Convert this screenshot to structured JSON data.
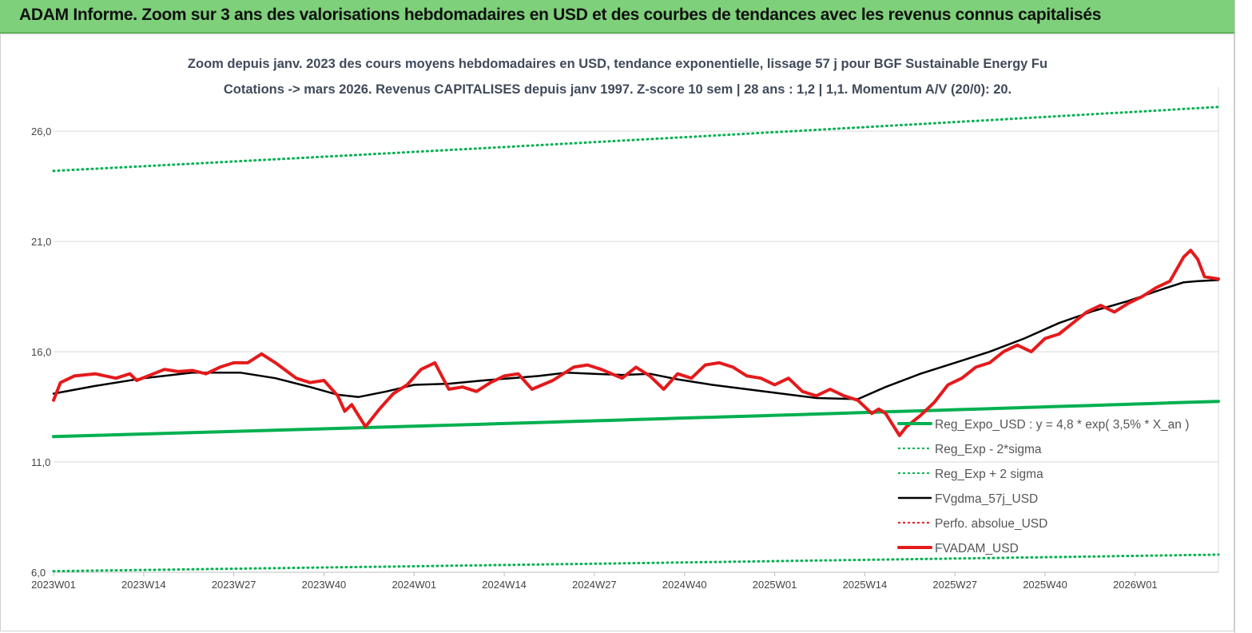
{
  "header": {
    "banner_title": "ADAM Informe. Zoom sur 3 ans des valorisations hebdomadaires en USD et des courbes de tendances avec les revenus connus capitalisés"
  },
  "colors": {
    "banner": "#7ed07a",
    "trend_green": "#00b050",
    "price_red": "#e41a1c",
    "smooth_black": "#000000",
    "grid": "#d9d9d9"
  },
  "chart_data": {
    "type": "line",
    "title_line1": "Zoom depuis janv. 2023 des cours moyens hebdomadaires en USD, tendance exponentielle, lissage 57 j pour BGF Sustainable Energy Fu",
    "title_line2": "Cotations -> mars 2026. Revenus CAPITALISES depuis janv 1997. Z-score 10 sem | 28 ans : 1,2 | 1,1. Momentum A/V (20/0): 20.",
    "x_ticks": [
      "2023W01",
      "2023W14",
      "2023W27",
      "2023W40",
      "2024W01",
      "2024W14",
      "2024W27",
      "2024W40",
      "2025W01",
      "2025W14",
      "2025W27",
      "2025W40",
      "2026W01"
    ],
    "y_ticks": [
      "6,0",
      "11,0",
      "16,0",
      "21,0",
      "26,0"
    ],
    "ylim": [
      6,
      28
    ],
    "x_range_weeks": [
      0,
      168
    ],
    "grid": "horizontal",
    "legend_position": "bottom-right",
    "series": [
      {
        "name": "Reg_Expo_USD : y = 4,8 * exp( 3,5% * X_an )",
        "style": "solid-thick",
        "color": "#00b050",
        "points": [
          [
            0,
            12.15
          ],
          [
            168,
            13.75
          ]
        ]
      },
      {
        "name": "Reg_Exp - 2*sigma",
        "style": "dotted",
        "color": "#00b050",
        "points": [
          [
            0,
            6.05
          ],
          [
            168,
            6.8
          ]
        ]
      },
      {
        "name": "Reg_Exp + 2 sigma",
        "style": "dotted",
        "color": "#00b050",
        "points": [
          [
            0,
            24.2
          ],
          [
            168,
            27.1
          ]
        ]
      },
      {
        "name": "FVgdma_57j_USD",
        "style": "solid",
        "color": "#000000",
        "points": [
          [
            0,
            14.1
          ],
          [
            6,
            14.45
          ],
          [
            13,
            14.8
          ],
          [
            20,
            15.05
          ],
          [
            27,
            15.05
          ],
          [
            32,
            14.8
          ],
          [
            37,
            14.4
          ],
          [
            41,
            14.05
          ],
          [
            44,
            13.95
          ],
          [
            48,
            14.2
          ],
          [
            52,
            14.5
          ],
          [
            57,
            14.55
          ],
          [
            62,
            14.7
          ],
          [
            66,
            14.8
          ],
          [
            70,
            14.9
          ],
          [
            74,
            15.05
          ],
          [
            78,
            15.0
          ],
          [
            82,
            14.95
          ],
          [
            86,
            15.0
          ],
          [
            90,
            14.75
          ],
          [
            95,
            14.5
          ],
          [
            100,
            14.3
          ],
          [
            105,
            14.1
          ],
          [
            110,
            13.9
          ],
          [
            116,
            13.85
          ],
          [
            120,
            14.4
          ],
          [
            125,
            15.0
          ],
          [
            130,
            15.5
          ],
          [
            135,
            16.0
          ],
          [
            140,
            16.6
          ],
          [
            145,
            17.3
          ],
          [
            150,
            17.85
          ],
          [
            155,
            18.3
          ],
          [
            160,
            18.85
          ],
          [
            163,
            19.15
          ],
          [
            165,
            19.2
          ],
          [
            168,
            19.25
          ]
        ]
      },
      {
        "name": "Perfo. absolue_USD",
        "style": "dotted",
        "color": "#e41a1c",
        "points": []
      },
      {
        "name": "FVADAM_USD",
        "style": "solid-thick",
        "color": "#e41a1c",
        "points": [
          [
            0,
            13.8
          ],
          [
            1,
            14.6
          ],
          [
            3,
            14.9
          ],
          [
            6,
            15.0
          ],
          [
            9,
            14.8
          ],
          [
            11,
            15.0
          ],
          [
            12,
            14.7
          ],
          [
            16,
            15.2
          ],
          [
            18,
            15.1
          ],
          [
            20,
            15.15
          ],
          [
            22,
            15.0
          ],
          [
            24,
            15.3
          ],
          [
            26,
            15.5
          ],
          [
            28,
            15.5
          ],
          [
            30,
            15.9
          ],
          [
            32,
            15.5
          ],
          [
            35,
            14.8
          ],
          [
            37,
            14.6
          ],
          [
            39,
            14.7
          ],
          [
            41,
            14.0
          ],
          [
            42,
            13.3
          ],
          [
            43,
            13.6
          ],
          [
            45,
            12.6
          ],
          [
            47,
            13.4
          ],
          [
            49,
            14.1
          ],
          [
            51,
            14.5
          ],
          [
            53,
            15.2
          ],
          [
            55,
            15.5
          ],
          [
            57,
            14.3
          ],
          [
            59,
            14.4
          ],
          [
            61,
            14.2
          ],
          [
            63,
            14.6
          ],
          [
            65,
            14.9
          ],
          [
            67,
            15.0
          ],
          [
            69,
            14.3
          ],
          [
            72,
            14.7
          ],
          [
            75,
            15.3
          ],
          [
            77,
            15.4
          ],
          [
            79,
            15.2
          ],
          [
            82,
            14.8
          ],
          [
            84,
            15.3
          ],
          [
            86,
            14.9
          ],
          [
            88,
            14.3
          ],
          [
            90,
            15.0
          ],
          [
            92,
            14.8
          ],
          [
            94,
            15.4
          ],
          [
            96,
            15.5
          ],
          [
            98,
            15.3
          ],
          [
            100,
            14.9
          ],
          [
            102,
            14.8
          ],
          [
            104,
            14.5
          ],
          [
            106,
            14.8
          ],
          [
            108,
            14.2
          ],
          [
            110,
            14.0
          ],
          [
            112,
            14.3
          ],
          [
            114,
            14.0
          ],
          [
            116,
            13.8
          ],
          [
            118,
            13.2
          ],
          [
            119,
            13.4
          ],
          [
            120,
            13.2
          ],
          [
            122,
            12.2
          ],
          [
            123,
            12.6
          ],
          [
            125,
            13.1
          ],
          [
            127,
            13.7
          ],
          [
            129,
            14.5
          ],
          [
            131,
            14.8
          ],
          [
            133,
            15.3
          ],
          [
            135,
            15.5
          ],
          [
            137,
            16.0
          ],
          [
            139,
            16.3
          ],
          [
            141,
            16.0
          ],
          [
            143,
            16.6
          ],
          [
            145,
            16.8
          ],
          [
            147,
            17.3
          ],
          [
            149,
            17.8
          ],
          [
            151,
            18.1
          ],
          [
            153,
            17.8
          ],
          [
            155,
            18.2
          ],
          [
            157,
            18.5
          ],
          [
            159,
            18.9
          ],
          [
            161,
            19.2
          ],
          [
            163,
            20.3
          ],
          [
            164,
            20.6
          ],
          [
            165,
            20.2
          ],
          [
            166,
            19.4
          ],
          [
            168,
            19.3
          ]
        ]
      }
    ]
  }
}
